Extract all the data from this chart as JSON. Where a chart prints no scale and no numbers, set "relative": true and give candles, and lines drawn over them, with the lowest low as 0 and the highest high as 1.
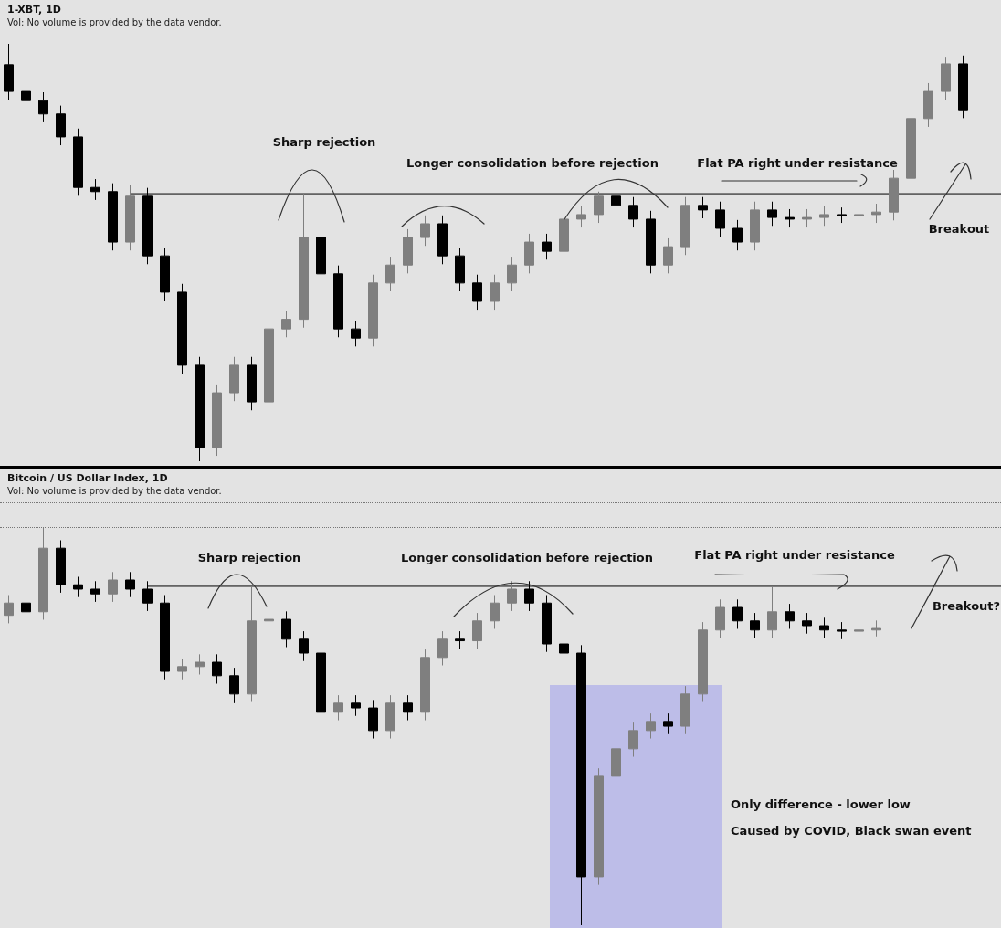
{
  "chart_data": [
    {
      "type": "candlestick",
      "title": "1-XBT, 1D",
      "subtitle": "Vol: No volume is provided by the data vendor.",
      "relative": true,
      "tick_labels": false,
      "categories": [
        null,
        null,
        null,
        null,
        null,
        null,
        null,
        null,
        null,
        null,
        null,
        null,
        null,
        null,
        null,
        null,
        null,
        null,
        null,
        null,
        null,
        null,
        null,
        null,
        null,
        null,
        null,
        null,
        null,
        null,
        null,
        null,
        null,
        null,
        null,
        null,
        null,
        null,
        null,
        null,
        null,
        null,
        null,
        null,
        null,
        null,
        null,
        null,
        null,
        null,
        null,
        null,
        null,
        null,
        null,
        null
      ],
      "ohlc": [
        [
          0.95,
          1.0,
          0.866,
          0.886
        ],
        [
          0.886,
          0.906,
          0.844,
          0.864
        ],
        [
          0.864,
          0.884,
          0.812,
          0.832
        ],
        [
          0.832,
          0.852,
          0.757,
          0.777
        ],
        [
          0.777,
          0.797,
          0.636,
          0.656
        ],
        [
          0.656,
          0.676,
          0.626,
          0.646
        ],
        [
          0.646,
          0.666,
          0.505,
          0.525
        ],
        [
          0.525,
          0.661,
          0.505,
          0.635
        ],
        [
          0.635,
          0.655,
          0.472,
          0.492
        ],
        [
          0.492,
          0.512,
          0.385,
          0.405
        ],
        [
          0.405,
          0.425,
          0.21,
          0.23
        ],
        [
          0.23,
          0.25,
          0.0,
          0.033
        ],
        [
          0.033,
          0.184,
          0.013,
          0.164
        ],
        [
          0.164,
          0.25,
          0.144,
          0.23
        ],
        [
          0.23,
          0.25,
          0.122,
          0.142
        ],
        [
          0.142,
          0.337,
          0.122,
          0.317
        ],
        [
          0.317,
          0.36,
          0.297,
          0.34
        ],
        [
          0.34,
          0.641,
          0.32,
          0.536
        ],
        [
          0.536,
          0.556,
          0.429,
          0.449
        ],
        [
          0.449,
          0.469,
          0.297,
          0.317
        ],
        [
          0.317,
          0.337,
          0.275,
          0.295
        ],
        [
          0.295,
          0.447,
          0.275,
          0.427
        ],
        [
          0.427,
          0.49,
          0.407,
          0.47
        ],
        [
          0.47,
          0.556,
          0.45,
          0.536
        ],
        [
          0.536,
          0.589,
          0.516,
          0.569
        ],
        [
          0.569,
          0.589,
          0.472,
          0.492
        ],
        [
          0.492,
          0.512,
          0.407,
          0.427
        ],
        [
          0.427,
          0.447,
          0.363,
          0.383
        ],
        [
          0.383,
          0.447,
          0.363,
          0.427
        ],
        [
          0.427,
          0.49,
          0.407,
          0.47
        ],
        [
          0.47,
          0.545,
          0.45,
          0.525
        ],
        [
          0.525,
          0.545,
          0.483,
          0.503
        ],
        [
          0.503,
          0.6,
          0.483,
          0.58
        ],
        [
          0.58,
          0.611,
          0.56,
          0.591
        ],
        [
          0.591,
          0.646,
          0.571,
          0.635
        ],
        [
          0.635,
          0.64,
          0.593,
          0.613
        ],
        [
          0.613,
          0.633,
          0.56,
          0.58
        ],
        [
          0.58,
          0.6,
          0.45,
          0.47
        ],
        [
          0.47,
          0.534,
          0.45,
          0.514
        ],
        [
          0.514,
          0.633,
          0.494,
          0.613
        ],
        [
          0.613,
          0.633,
          0.582,
          0.602
        ],
        [
          0.602,
          0.622,
          0.538,
          0.558
        ],
        [
          0.558,
          0.578,
          0.505,
          0.525
        ],
        [
          0.525,
          0.622,
          0.505,
          0.602
        ],
        [
          0.602,
          0.622,
          0.564,
          0.584
        ],
        [
          0.584,
          0.604,
          0.56,
          0.58
        ],
        [
          0.58,
          0.604,
          0.56,
          0.584
        ],
        [
          0.584,
          0.611,
          0.564,
          0.591
        ],
        [
          0.591,
          0.608,
          0.571,
          0.588
        ],
        [
          0.588,
          0.611,
          0.571,
          0.591
        ],
        [
          0.591,
          0.617,
          0.571,
          0.597
        ],
        [
          0.597,
          0.698,
          0.577,
          0.678
        ],
        [
          0.678,
          0.841,
          0.658,
          0.821
        ],
        [
          0.821,
          0.906,
          0.801,
          0.886
        ],
        [
          0.886,
          0.969,
          0.866,
          0.952
        ],
        [
          0.952,
          0.972,
          0.822,
          0.842
        ]
      ],
      "ref_lines": [
        {
          "axis": "y",
          "value": 0.641
        }
      ],
      "annotations": [
        "Sharp rejection",
        "Longer consolidation before rejection",
        "Flat PA right under resistance",
        "Breakout"
      ]
    },
    {
      "type": "candlestick",
      "title": "Bitcoin / US Dollar Index, 1D",
      "subtitle": "Vol: No volume is provided by the data vendor.",
      "relative": true,
      "tick_labels": false,
      "categories": [
        null,
        null,
        null,
        null,
        null,
        null,
        null,
        null,
        null,
        null,
        null,
        null,
        null,
        null,
        null,
        null,
        null,
        null,
        null,
        null,
        null,
        null,
        null,
        null,
        null,
        null,
        null,
        null,
        null,
        null,
        null,
        null,
        null,
        null,
        null,
        null,
        null,
        null,
        null,
        null,
        null,
        null,
        null,
        null,
        null,
        null,
        null,
        null,
        null,
        null,
        null
      ],
      "ohlc": [
        [
          0.78,
          0.831,
          0.76,
          0.811
        ],
        [
          0.811,
          0.831,
          0.769,
          0.789
        ],
        [
          0.789,
          1.0,
          0.769,
          0.949
        ],
        [
          0.949,
          0.969,
          0.837,
          0.857
        ],
        [
          0.857,
          0.877,
          0.826,
          0.846
        ],
        [
          0.846,
          0.866,
          0.814,
          0.834
        ],
        [
          0.834,
          0.889,
          0.814,
          0.869
        ],
        [
          0.869,
          0.889,
          0.826,
          0.846
        ],
        [
          0.846,
          0.866,
          0.791,
          0.811
        ],
        [
          0.811,
          0.831,
          0.619,
          0.639
        ],
        [
          0.639,
          0.671,
          0.619,
          0.651
        ],
        [
          0.651,
          0.682,
          0.631,
          0.662
        ],
        [
          0.662,
          0.682,
          0.608,
          0.628
        ],
        [
          0.628,
          0.648,
          0.559,
          0.582
        ],
        [
          0.582,
          0.853,
          0.562,
          0.766
        ],
        [
          0.766,
          0.79,
          0.746,
          0.77
        ],
        [
          0.77,
          0.79,
          0.7,
          0.72
        ],
        [
          0.72,
          0.74,
          0.665,
          0.685
        ],
        [
          0.685,
          0.705,
          0.516,
          0.536
        ],
        [
          0.536,
          0.579,
          0.516,
          0.559
        ],
        [
          0.559,
          0.579,
          0.527,
          0.547
        ],
        [
          0.547,
          0.567,
          0.47,
          0.49
        ],
        [
          0.49,
          0.579,
          0.47,
          0.559
        ],
        [
          0.559,
          0.579,
          0.516,
          0.536
        ],
        [
          0.536,
          0.694,
          0.516,
          0.674
        ],
        [
          0.674,
          0.74,
          0.654,
          0.72
        ],
        [
          0.72,
          0.74,
          0.696,
          0.716
        ],
        [
          0.716,
          0.786,
          0.696,
          0.766
        ],
        [
          0.766,
          0.831,
          0.746,
          0.811
        ],
        [
          0.811,
          0.866,
          0.791,
          0.846
        ],
        [
          0.846,
          0.866,
          0.791,
          0.811
        ],
        [
          0.811,
          0.831,
          0.688,
          0.708
        ],
        [
          0.708,
          0.728,
          0.665,
          0.685
        ],
        [
          0.685,
          0.705,
          0.0,
          0.122
        ],
        [
          0.122,
          0.395,
          0.102,
          0.375
        ],
        [
          0.375,
          0.464,
          0.355,
          0.444
        ],
        [
          0.444,
          0.51,
          0.424,
          0.49
        ],
        [
          0.49,
          0.533,
          0.47,
          0.513
        ],
        [
          0.513,
          0.533,
          0.481,
          0.501
        ],
        [
          0.501,
          0.602,
          0.481,
          0.582
        ],
        [
          0.582,
          0.763,
          0.562,
          0.743
        ],
        [
          0.743,
          0.82,
          0.723,
          0.8
        ],
        [
          0.8,
          0.82,
          0.746,
          0.766
        ],
        [
          0.766,
          0.786,
          0.723,
          0.743
        ],
        [
          0.743,
          0.853,
          0.723,
          0.789
        ],
        [
          0.789,
          0.809,
          0.746,
          0.766
        ],
        [
          0.766,
          0.786,
          0.734,
          0.754
        ],
        [
          0.754,
          0.774,
          0.723,
          0.743
        ],
        [
          0.743,
          0.763,
          0.72,
          0.74
        ],
        [
          0.74,
          0.763,
          0.72,
          0.743
        ],
        [
          0.743,
          0.767,
          0.727,
          0.747
        ]
      ],
      "ref_lines": [
        {
          "axis": "y",
          "value": 0.853
        }
      ],
      "annotations": [
        "Sharp rejection",
        "Longer consolidation before rejection",
        "Flat PA right under resistance",
        "Breakout?",
        "Only difference - lower low",
        "Caused by COVID, Black swan event"
      ]
    }
  ]
}
